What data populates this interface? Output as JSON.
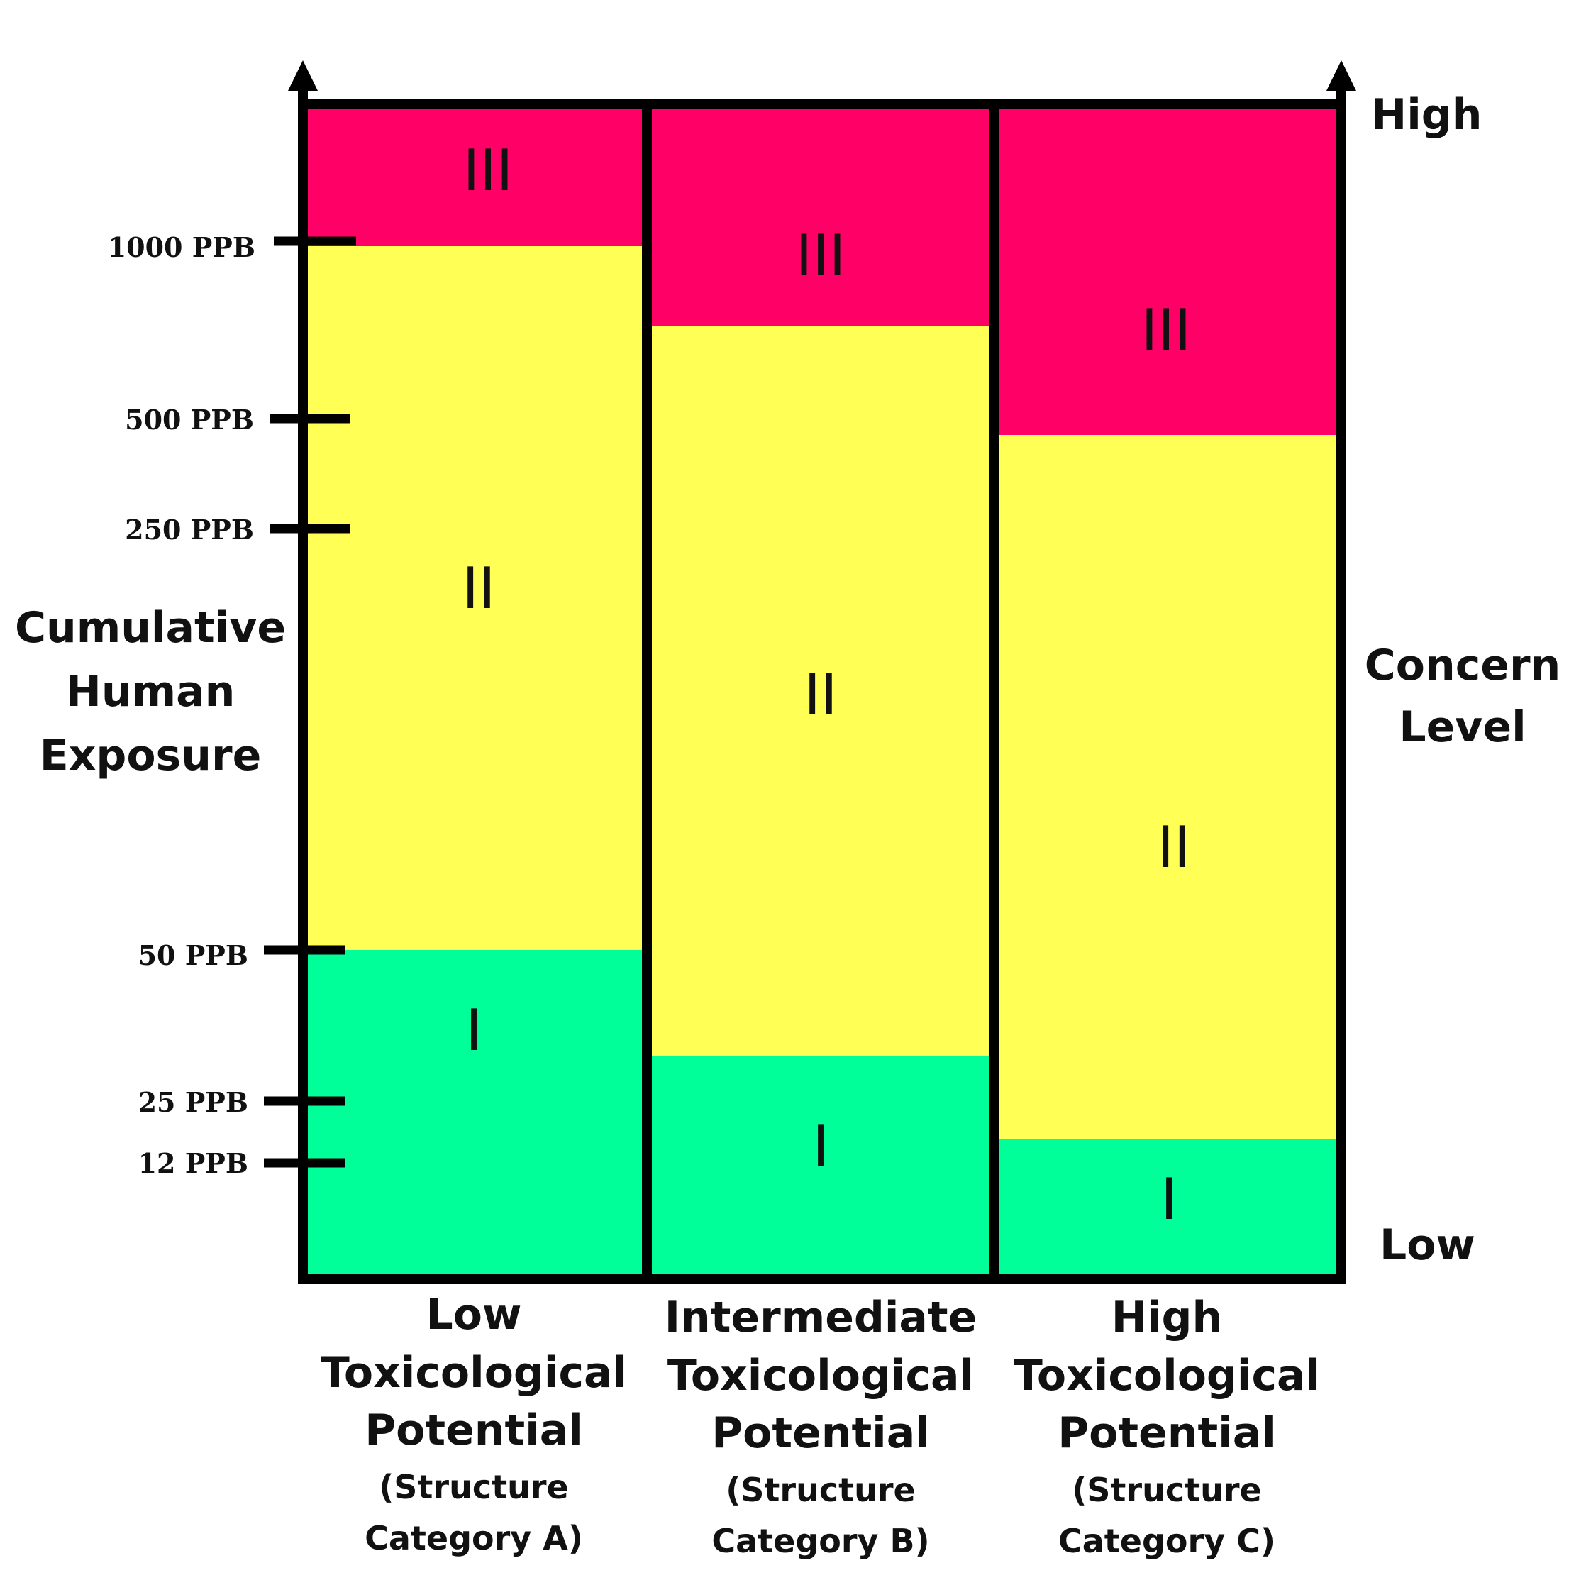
{
  "y_axis": {
    "label_lines": [
      "Cumulative",
      "Human",
      "Exposure"
    ],
    "ticks": [
      "1000 PPB",
      "500 PPB",
      "250 PPB",
      "50 PPB",
      "25 PPB",
      "12 PPB"
    ]
  },
  "right_axis": {
    "high": "High",
    "label_lines": [
      "Concern",
      "Level"
    ],
    "low": "Low"
  },
  "colors": {
    "level_III": "#ff0066",
    "level_II": "#ffff55",
    "level_I": "#00ff99",
    "frame": "#000000"
  },
  "columns": [
    {
      "name_lines": [
        "Low",
        "Toxicological",
        "Potential"
      ],
      "sub_lines": [
        "(Structure",
        "Category A)"
      ],
      "bands": [
        {
          "level": "III",
          "from": "1000 PPB",
          "to": "top"
        },
        {
          "level": "II",
          "from": "50 PPB",
          "to": "1000 PPB"
        },
        {
          "level": "I",
          "from": "bottom",
          "to": "50 PPB"
        }
      ]
    },
    {
      "name_lines": [
        "Intermediate",
        "Toxicological",
        "Potential"
      ],
      "sub_lines": [
        "(Structure",
        "Category B)"
      ],
      "bands": [
        {
          "level": "III",
          "to": "top"
        },
        {
          "level": "II"
        },
        {
          "level": "I",
          "from": "bottom"
        }
      ]
    },
    {
      "name_lines": [
        "High",
        "Toxicological",
        "Potential"
      ],
      "sub_lines": [
        "(Structure",
        "Category C)"
      ],
      "bands": [
        {
          "level": "III",
          "to": "top"
        },
        {
          "level": "II"
        },
        {
          "level": "I",
          "from": "bottom"
        }
      ]
    }
  ]
}
